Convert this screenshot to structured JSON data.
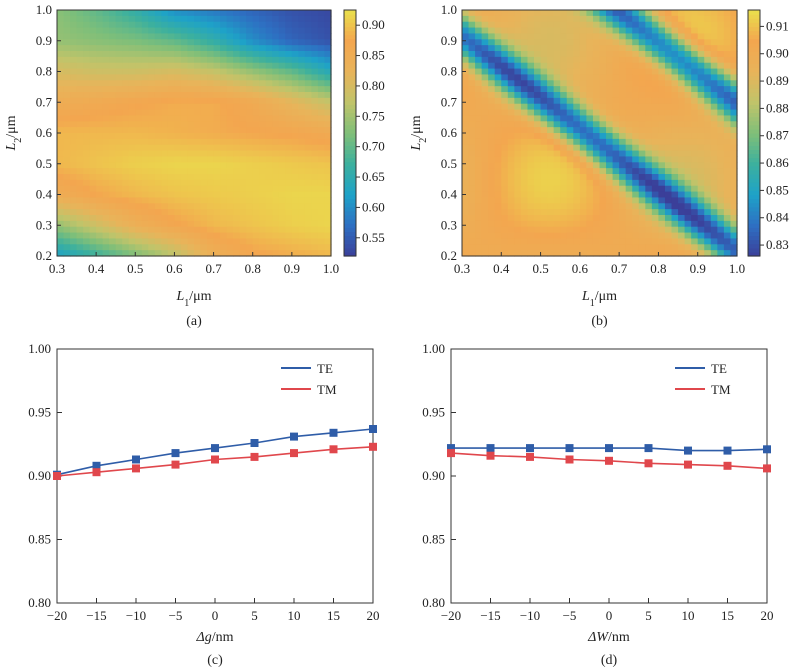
{
  "chart_data": [
    {
      "panel": "(a)",
      "type": "heatmap",
      "x_label": {
        "var": "L",
        "sub": "1",
        "unit": "/μm"
      },
      "y_label": {
        "var": "L",
        "sub": "2",
        "unit": "/μm"
      },
      "xlim": [
        0.3,
        1.0
      ],
      "ylim": [
        0.2,
        1.0
      ],
      "x_ticks": [
        "0.3",
        "0.4",
        "0.5",
        "0.6",
        "0.7",
        "0.8",
        "0.9",
        "1.0"
      ],
      "y_ticks": [
        "0.2",
        "0.3",
        "0.4",
        "0.5",
        "0.6",
        "0.7",
        "0.8",
        "0.9",
        "1.0"
      ],
      "colorbar": {
        "min": 0.52,
        "max": 0.925,
        "ticks": [
          "0.55",
          "0.60",
          "0.65",
          "0.70",
          "0.75",
          "0.80",
          "0.85",
          "0.90"
        ],
        "colors": [
          "#3b3f99",
          "#2e6fc2",
          "#1ea2c8",
          "#3cb09e",
          "#7fbf79",
          "#c0c46a",
          "#e8b45a",
          "#f3a64f",
          "#e9e04c"
        ]
      },
      "grid_x": [
        0.3,
        0.4,
        0.5,
        0.6,
        0.7,
        0.8,
        0.9,
        1.0
      ],
      "grid_y": [
        0.2,
        0.3,
        0.4,
        0.5,
        0.6,
        0.7,
        0.8,
        0.9,
        1.0
      ],
      "values": [
        [
          0.62,
          0.67,
          0.72,
          0.77,
          0.84,
          0.87,
          0.88,
          0.89
        ],
        [
          0.74,
          0.79,
          0.84,
          0.87,
          0.89,
          0.9,
          0.91,
          0.915
        ],
        [
          0.85,
          0.875,
          0.89,
          0.9,
          0.905,
          0.91,
          0.915,
          0.915
        ],
        [
          0.89,
          0.9,
          0.91,
          0.915,
          0.915,
          0.91,
          0.905,
          0.9
        ],
        [
          0.89,
          0.89,
          0.89,
          0.885,
          0.88,
          0.875,
          0.87,
          0.86
        ],
        [
          0.85,
          0.86,
          0.87,
          0.88,
          0.88,
          0.86,
          0.82,
          0.78
        ],
        [
          0.8,
          0.79,
          0.79,
          0.8,
          0.78,
          0.74,
          0.7,
          0.64
        ],
        [
          0.74,
          0.73,
          0.72,
          0.7,
          0.66,
          0.6,
          0.56,
          0.54
        ],
        [
          0.73,
          0.7,
          0.66,
          0.6,
          0.58,
          0.56,
          0.54,
          0.53
        ]
      ]
    },
    {
      "panel": "(b)",
      "type": "heatmap",
      "x_label": {
        "var": "L",
        "sub": "1",
        "unit": "/μm"
      },
      "y_label": {
        "var": "L",
        "sub": "2",
        "unit": "/μm"
      },
      "xlim": [
        0.3,
        1.0
      ],
      "ylim": [
        0.2,
        1.0
      ],
      "x_ticks": [
        "0.3",
        "0.4",
        "0.5",
        "0.6",
        "0.7",
        "0.8",
        "0.9",
        "1.0"
      ],
      "y_ticks": [
        "0.2",
        "0.3",
        "0.4",
        "0.5",
        "0.6",
        "0.7",
        "0.8",
        "0.9",
        "1.0"
      ],
      "colorbar": {
        "min": 0.826,
        "max": 0.916,
        "ticks": [
          "0.83",
          "0.84",
          "0.85",
          "0.86",
          "0.87",
          "0.88",
          "0.89",
          "0.90",
          "0.91"
        ],
        "colors": [
          "#3b3f99",
          "#2e6fc2",
          "#1ea2c8",
          "#3cb09e",
          "#7fbf79",
          "#c0c46a",
          "#e8b45a",
          "#f3a64f",
          "#e9e04c"
        ]
      },
      "model": {
        "base": 0.901,
        "amplitude": 0.068,
        "band_centers": [
          1.215,
          1.695
        ],
        "band_width": 0.075
      }
    },
    {
      "panel": "(c)",
      "type": "line",
      "x_label": {
        "var": "Δg",
        "unit": "/nm"
      },
      "x": [
        -20,
        -15,
        -10,
        -5,
        0,
        5,
        10,
        15,
        20
      ],
      "xlim": [
        -20,
        20
      ],
      "ylim": [
        0.8,
        1.0
      ],
      "x_ticks": [
        "−20",
        "−15",
        "−10",
        "−5",
        "0",
        "5",
        "10",
        "15",
        "20"
      ],
      "y_ticks": [
        "0.80",
        "0.85",
        "0.90",
        "0.95",
        "1.00"
      ],
      "legend": "top-right",
      "series": [
        {
          "name": "TE",
          "color": "#2f5da8",
          "values": [
            0.901,
            0.908,
            0.913,
            0.918,
            0.922,
            0.926,
            0.931,
            0.934,
            0.937
          ]
        },
        {
          "name": "TM",
          "color": "#e0474c",
          "values": [
            0.9,
            0.903,
            0.906,
            0.909,
            0.913,
            0.915,
            0.918,
            0.921,
            0.923
          ]
        }
      ]
    },
    {
      "panel": "(d)",
      "type": "line",
      "x_label": {
        "var": "ΔW",
        "unit": "/nm"
      },
      "x": [
        -20,
        -15,
        -10,
        -5,
        0,
        5,
        10,
        15,
        20
      ],
      "xlim": [
        -20,
        20
      ],
      "ylim": [
        0.8,
        1.0
      ],
      "x_ticks": [
        "−20",
        "−15",
        "−10",
        "−5",
        "0",
        "5",
        "10",
        "15",
        "20"
      ],
      "y_ticks": [
        "0.80",
        "0.85",
        "0.90",
        "0.95",
        "1.00"
      ],
      "legend": "top-right",
      "series": [
        {
          "name": "TE",
          "color": "#2f5da8",
          "values": [
            0.922,
            0.922,
            0.922,
            0.922,
            0.922,
            0.922,
            0.92,
            0.92,
            0.921
          ]
        },
        {
          "name": "TM",
          "color": "#e0474c",
          "values": [
            0.918,
            0.916,
            0.915,
            0.913,
            0.912,
            0.91,
            0.909,
            0.908,
            0.906
          ]
        }
      ]
    }
  ]
}
